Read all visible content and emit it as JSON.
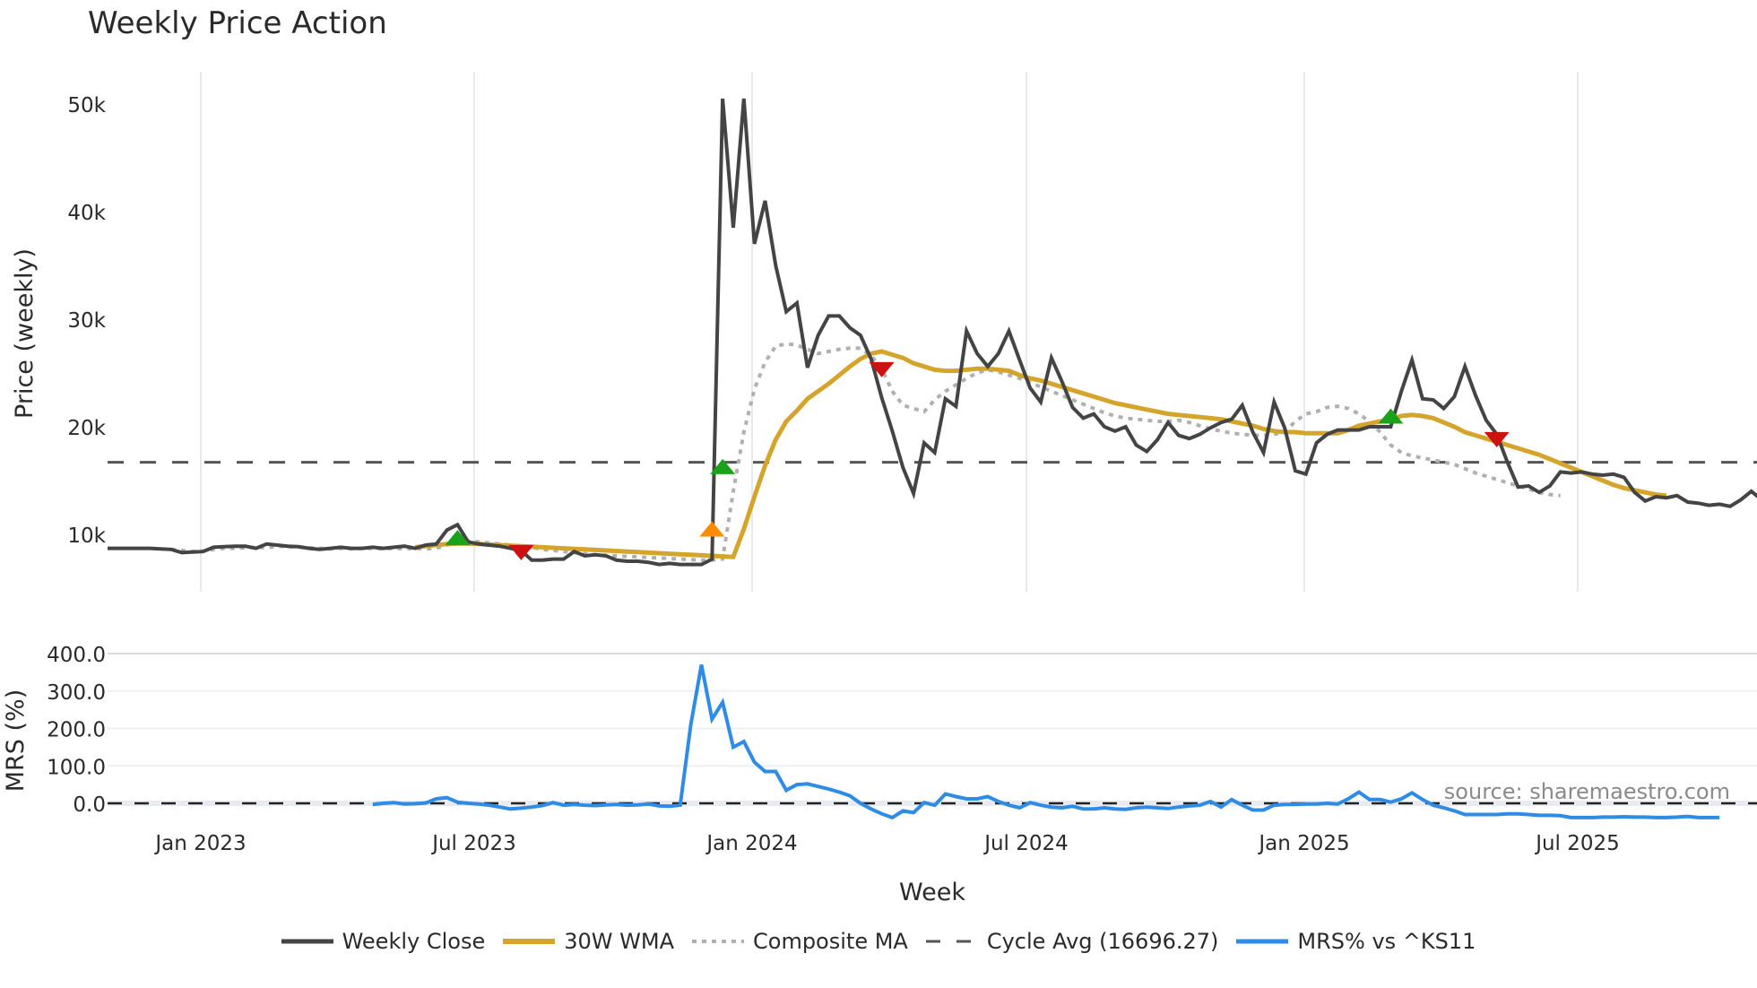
{
  "title": "Weekly Price Action",
  "source_note": "source: sharemaestro.com",
  "price_panel": {
    "ylabel": "Price (weekly)",
    "yticks": [
      "10k",
      "20k",
      "30k",
      "40k",
      "50k"
    ],
    "ytick_values": [
      10000,
      20000,
      30000,
      40000,
      50000
    ]
  },
  "mrs_panel": {
    "ylabel": "MRS (%)",
    "yticks": [
      "0.0",
      "100.0",
      "200.0",
      "300.0",
      "400.0"
    ],
    "ytick_values": [
      0,
      100,
      200,
      300,
      400
    ]
  },
  "xaxis": {
    "label": "Week",
    "ticks": [
      "Jan 2023",
      "Jul 2023",
      "Jan 2024",
      "Jul 2024",
      "Jan 2025",
      "Jul 2025"
    ]
  },
  "legend": [
    {
      "label": "Weekly Close",
      "color": "#444444",
      "style": "solid"
    },
    {
      "label": "30W WMA",
      "color": "#d4a52a",
      "style": "solid"
    },
    {
      "label": "Composite MA",
      "color": "#b0b0b0",
      "style": "dotted"
    },
    {
      "label": "Cycle Avg (16696.27)",
      "color": "#555555",
      "style": "dashed"
    },
    {
      "label": "MRS% vs ^KS11",
      "color": "#2e8be6",
      "style": "solid"
    }
  ],
  "chart_data": {
    "type": "line",
    "title": "Weekly Price Action",
    "xlabel": "Week",
    "ylabel": "Price (weekly)",
    "ylim": [
      5000,
      53000
    ],
    "x_ticks": [
      "Jan 2023",
      "Jul 2023",
      "Jan 2024",
      "Jul 2024",
      "Jan 2025",
      "Jul 2025"
    ],
    "grid": true,
    "legend_position": "bottom",
    "cycle_avg": 16696.27,
    "series": [
      {
        "name": "Weekly Close",
        "start_index": 0,
        "values": [
          8700,
          8700,
          8700,
          8700,
          8700,
          8650,
          8600,
          8300,
          8350,
          8400,
          8800,
          8850,
          8900,
          8900,
          8700,
          9100,
          9000,
          8900,
          8850,
          8700,
          8600,
          8700,
          8800,
          8700,
          8700,
          8800,
          8700,
          8800,
          8900,
          8700,
          9000,
          9100,
          10400,
          10900,
          9300,
          9100,
          9000,
          8900,
          8700,
          8500,
          7600,
          7600,
          7700,
          7700,
          8400,
          8000,
          8100,
          8000,
          7600,
          7500,
          7500,
          7400,
          7200,
          7300,
          7200,
          7200,
          7200,
          7700,
          50500,
          38500,
          50500,
          37000,
          41000,
          35000,
          30700,
          31500,
          25500,
          28500,
          30300,
          30300,
          29200,
          28500,
          26300,
          22700,
          19600,
          16200,
          13800,
          18500,
          17600,
          22600,
          21900,
          28900,
          26800,
          25600,
          26800,
          28900,
          26200,
          23600,
          22300,
          26400,
          24200,
          21800,
          20800,
          21200,
          20000,
          19600,
          20000,
          18300,
          17700,
          18800,
          20400,
          19200,
          18900,
          19300,
          19900,
          20400,
          20700,
          22000,
          19500,
          17600,
          22300,
          19900,
          15900,
          15600,
          18500,
          19300,
          19700,
          19700,
          19700,
          20000,
          20000,
          20000,
          23300,
          26200,
          22600,
          22500,
          21700,
          22800,
          25600,
          22900,
          20600,
          19300,
          16700,
          14400,
          14500,
          13900,
          14500,
          15800,
          15700,
          15800,
          15600,
          15500,
          15600,
          15300,
          13900,
          13100,
          13500,
          13400,
          13600,
          13000,
          12900,
          12700,
          12800,
          12600,
          13200,
          14000,
          13200,
          13500
        ]
      },
      {
        "name": "30W WMA",
        "start_index": 29,
        "values": [
          8800,
          8900,
          9000,
          9100,
          9150,
          9150,
          9100,
          9050,
          9000,
          8950,
          8900,
          8850,
          8800,
          8750,
          8700,
          8650,
          8600,
          8550,
          8500,
          8450,
          8400,
          8350,
          8300,
          8250,
          8200,
          8150,
          8100,
          8050,
          8000,
          7950,
          7900,
          10500,
          13500,
          16400,
          18800,
          20500,
          21500,
          22600,
          23300,
          24000,
          24800,
          25600,
          26300,
          26800,
          27000,
          26700,
          26400,
          25900,
          25600,
          25300,
          25200,
          25200,
          25300,
          25400,
          25400,
          25300,
          25200,
          24800,
          24500,
          24300,
          24000,
          23700,
          23400,
          23100,
          22800,
          22500,
          22200,
          22000,
          21800,
          21600,
          21400,
          21200,
          21100,
          21000,
          20900,
          20800,
          20700,
          20500,
          20300,
          20100,
          19800,
          19600,
          19500,
          19500,
          19400,
          19400,
          19400,
          19400,
          19700,
          20100,
          20300,
          20500,
          20700,
          21000,
          21100,
          21000,
          20800,
          20400,
          20000,
          19500,
          19200,
          18900,
          18600,
          18300,
          18000,
          17700,
          17400,
          17000,
          16600,
          16200,
          15800,
          15400,
          15000,
          14600,
          14300,
          14100,
          13900,
          13700,
          13600
        ]
      },
      {
        "name": "Composite MA",
        "start_index": 6,
        "values": [
          8600,
          8500,
          8400,
          8450,
          8600,
          8700,
          8700,
          8750,
          8800,
          8750,
          8900,
          8850,
          8800,
          8750,
          8700,
          8650,
          8700,
          8650,
          8700,
          8700,
          8650,
          8700,
          8650,
          8700,
          8650,
          8700,
          9000,
          9300,
          9400,
          9300,
          9200,
          9100,
          9000,
          8900,
          8800,
          8600,
          8500,
          8400,
          8300,
          8200,
          8100,
          8050,
          8000,
          7950,
          7900,
          7850,
          7800,
          7750,
          7700,
          7650,
          7600,
          7600,
          7700,
          14000,
          19500,
          23500,
          26000,
          27500,
          27700,
          27600,
          27200,
          26800,
          27000,
          27200,
          27300,
          27300,
          26600,
          25400,
          23300,
          22000,
          21700,
          21400,
          22500,
          23300,
          23900,
          24500,
          25000,
          25300,
          25100,
          24800,
          24500,
          24100,
          23700,
          23300,
          22900,
          22500,
          22100,
          21700,
          21300,
          21000,
          20800,
          20700,
          20600,
          20500,
          20500,
          20600,
          20400,
          20100,
          19800,
          19600,
          19400,
          19300,
          19200,
          19200,
          19300,
          19500,
          20500,
          21200,
          21400,
          21800,
          21900,
          21700,
          21200,
          20500,
          19500,
          18300,
          17600,
          17300,
          17100,
          16900,
          16700,
          16500,
          16100,
          15700,
          15400,
          15100,
          14800,
          14500,
          14200,
          13900,
          13700,
          13600
        ]
      },
      {
        "name": "MRS% vs ^KS11",
        "start_index": 25,
        "values": [
          -3,
          0,
          2,
          -2,
          -1,
          1,
          12,
          15,
          3,
          0,
          -2,
          -5,
          -10,
          -15,
          -13,
          -10,
          -6,
          2,
          -5,
          -3,
          -5,
          -6,
          -4,
          -3,
          -5,
          -4,
          -2,
          -7,
          -8,
          -5,
          210,
          370,
          225,
          270,
          150,
          165,
          110,
          85,
          85,
          35,
          50,
          52,
          45,
          38,
          30,
          20,
          0,
          -15,
          -28,
          -38,
          -20,
          -25,
          2,
          -5,
          25,
          18,
          12,
          12,
          18,
          5,
          -5,
          -12,
          2,
          -5,
          -10,
          -12,
          -8,
          -15,
          -15,
          -12,
          -15,
          -16,
          -12,
          -10,
          -12,
          -14,
          -10,
          -7,
          -5,
          5,
          -10,
          10,
          -5,
          -18,
          -18,
          -5,
          -3,
          -3,
          -2,
          -2,
          0,
          -2,
          12,
          30,
          10,
          10,
          3,
          12,
          28,
          10,
          -5,
          -12,
          -20,
          -30,
          -30,
          -30,
          -30,
          -28,
          -28,
          -30,
          -32,
          -32,
          -33,
          -38,
          -38,
          -38,
          -37,
          -37,
          -36,
          -37,
          -37,
          -38,
          -38,
          -37,
          -35,
          -38,
          -38,
          -38
        ]
      }
    ],
    "signals": [
      {
        "type": "buy",
        "color": "#1aa31a",
        "series_index": 33,
        "value": 9700
      },
      {
        "type": "sell",
        "color": "#cc1111",
        "series_index": 39,
        "value": 8300
      },
      {
        "type": "buy-early",
        "color": "#ff8c00",
        "series_index": 57,
        "value": 10500
      },
      {
        "type": "buy",
        "color": "#1aa31a",
        "series_index": 58,
        "value": 16300
      },
      {
        "type": "sell",
        "color": "#cc1111",
        "series_index": 73,
        "value": 25300
      },
      {
        "type": "buy",
        "color": "#1aa31a",
        "series_index": 121,
        "value": 21000
      },
      {
        "type": "sell",
        "color": "#cc1111",
        "series_index": 131,
        "value": 18800
      }
    ],
    "mrs_chart": {
      "ylabel": "MRS (%)",
      "ylim": [
        -50,
        420
      ],
      "zero_line": 0
    }
  }
}
